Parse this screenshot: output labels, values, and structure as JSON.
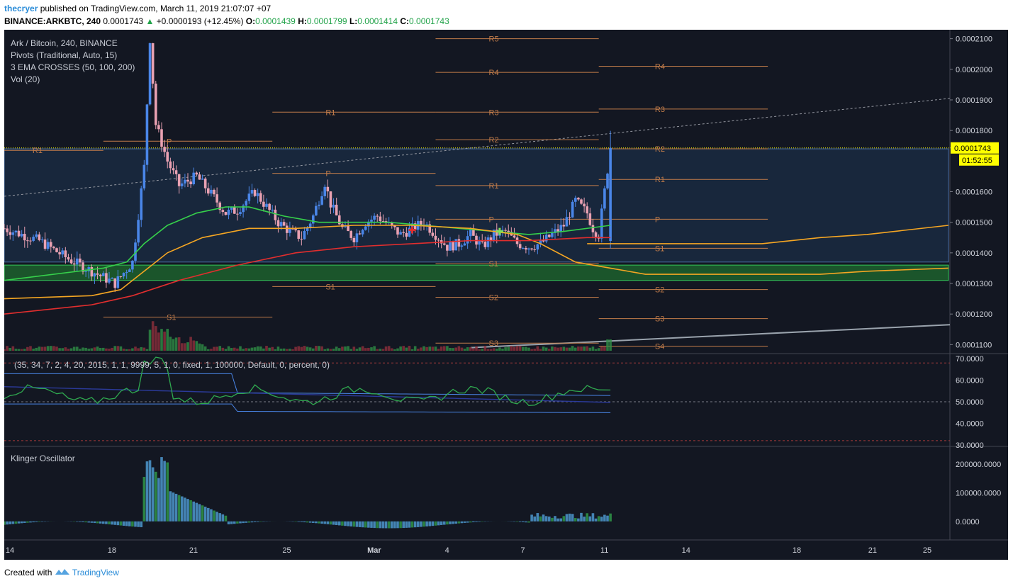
{
  "header": {
    "user": "thecryer",
    "published": "published on TradingView.com, March 11, 2019 21:07:07 +07",
    "symbol": "BINANCE:ARKBTC, 240",
    "last": "0.0001743",
    "change": "+0.0000193 (+12.45%)",
    "o_label": "O:",
    "o_value": "0.0001439",
    "h_label": "H:",
    "h_value": "0.0001799",
    "l_label": "L:",
    "l_value": "0.0001414",
    "c_label": "C:",
    "c_value": "0.0001743"
  },
  "legend": {
    "title": "Ark / Bitcoin, 240, BINANCE",
    "indicator1": "Pivots (Traditional, Auto, 15)",
    "indicator2": "3 EMA CROSSES (50, 100, 200)",
    "indicator3": "Vol (20)",
    "rsi_params": "(35, 34, 7, 2, 4, 20, 2015, 1, 1, 9999, 5, 1, 0, fixed, 1, 100000, Default, 0, percent, 0)",
    "klinger": "Klinger Oscillator"
  },
  "price_badge": {
    "price": "0.0001743",
    "countdown": "01:52:55"
  },
  "footer": {
    "created_with": "Created with",
    "brand": "TradingView"
  },
  "colors": {
    "background": "#131722",
    "up": "#4a86e8",
    "down": "#e9a1b2",
    "ema50": "#36d04b",
    "ema100": "#f5a623",
    "ema200": "#e12e2e",
    "pivot": "#c27c4a",
    "support_zone": "#1f6b2f",
    "price_badge": "#ffff00"
  },
  "chart_data": [
    {
      "type": "candlestick",
      "title": "Ark / Bitcoin, 240, BINANCE",
      "x_ticks": [
        "14",
        "18",
        "21",
        "25",
        "Mar",
        "4",
        "7",
        "11",
        "14",
        "18",
        "21",
        "25"
      ],
      "y_ticks": [
        "0.0002100",
        "0.0002000",
        "0.0001900",
        "0.0001800",
        "0.0001743",
        "0.0001600",
        "0.0001500",
        "0.0001400",
        "0.0001300",
        "0.0001200",
        "0.0001100"
      ],
      "ylim": [
        0.000108,
        0.000212
      ],
      "last_price": 0.0001743,
      "close_path": [
        [
          0,
          0.000148
        ],
        [
          6,
          0.000144
        ],
        [
          11,
          0.000138
        ],
        [
          16,
          0.000133
        ],
        [
          19,
          0.00013
        ],
        [
          22,
          0.000137
        ],
        [
          24,
          0.000168
        ],
        [
          25,
          0.00021
        ],
        [
          26,
          0.000182
        ],
        [
          28,
          0.00017
        ],
        [
          30,
          0.000162
        ],
        [
          33,
          0.000165
        ],
        [
          36,
          0.000158
        ],
        [
          38,
          0.000153
        ],
        [
          40,
          0.000154
        ],
        [
          43,
          0.00016
        ],
        [
          45,
          0.000155
        ],
        [
          47,
          0.00015
        ],
        [
          49,
          0.000147
        ],
        [
          51,
          0.000145
        ],
        [
          53,
          0.000152
        ],
        [
          55,
          0.000163
        ],
        [
          56,
          0.000156
        ],
        [
          58,
          0.000148
        ],
        [
          60,
          0.000145
        ],
        [
          62,
          0.00015
        ],
        [
          64,
          0.000152
        ],
        [
          66,
          0.000149
        ],
        [
          68,
          0.000146
        ],
        [
          70,
          0.000148
        ],
        [
          72,
          0.00015
        ],
        [
          74,
          0.000146
        ],
        [
          76,
          0.000142
        ],
        [
          78,
          0.000143
        ],
        [
          80,
          0.000146
        ],
        [
          82,
          0.000142
        ],
        [
          84,
          0.000146
        ],
        [
          86,
          0.000147
        ],
        [
          88,
          0.000143
        ],
        [
          90,
          0.000142
        ],
        [
          92,
          0.000143
        ],
        [
          94,
          0.000146
        ],
        [
          96,
          0.000149
        ],
        [
          98,
          0.000157
        ],
        [
          100,
          0.000153
        ],
        [
          101,
          0.000148
        ],
        [
          102,
          0.000146
        ],
        [
          104,
          0.0001743
        ]
      ],
      "ema_series": [
        {
          "name": "EMA 50",
          "values": [
            [
              0,
              0.000131
            ],
            [
              17,
              0.000135
            ],
            [
              21,
              0.000137
            ],
            [
              24,
              0.000143
            ],
            [
              28,
              0.000149
            ],
            [
              33,
              0.000153
            ],
            [
              38,
              0.000155
            ],
            [
              42,
              0.000155
            ],
            [
              48,
              0.000152
            ],
            [
              54,
              0.00015
            ],
            [
              60,
              0.00015
            ],
            [
              66,
              0.00015
            ],
            [
              72,
              0.000149
            ],
            [
              78,
              0.000148
            ],
            [
              84,
              0.000147
            ],
            [
              90,
              0.000146
            ],
            [
              96,
              0.000147
            ],
            [
              104,
              0.000149
            ]
          ]
        },
        {
          "name": "EMA 100",
          "values": [
            [
              0,
              0.000125
            ],
            [
              15,
              0.000126
            ],
            [
              20,
              0.000128
            ],
            [
              24,
              0.000134
            ],
            [
              28,
              0.00014
            ],
            [
              34,
              0.000145
            ],
            [
              42,
              0.000148
            ],
            [
              50,
              0.000148
            ],
            [
              60,
              0.000149
            ],
            [
              70,
              0.000149
            ],
            [
              80,
              0.000148
            ],
            [
              88,
              0.000146
            ],
            [
              92,
              0.000143
            ],
            [
              98,
              0.000137
            ],
            [
              104,
              0.000135
            ],
            [
              110,
              0.000133
            ],
            [
              130,
              0.000133
            ],
            [
              140,
              0.000133
            ],
            [
              148,
              0.000134
            ],
            [
              162,
              0.000135
            ]
          ]
        },
        {
          "name": "EMA 200",
          "values": [
            [
              0,
              0.00012
            ],
            [
              15,
              0.000123
            ],
            [
              22,
              0.000126
            ],
            [
              30,
              0.000131
            ],
            [
              40,
              0.000136
            ],
            [
              50,
              0.00014
            ],
            [
              60,
              0.000142
            ],
            [
              70,
              0.000143
            ],
            [
              80,
              0.000144
            ],
            [
              90,
              0.000144
            ],
            [
              100,
              0.000145
            ],
            [
              104,
              0.000145
            ]
          ]
        }
      ],
      "ema_orange_projection": [
        [
          100,
          0.000143
        ],
        [
          130,
          0.000143
        ],
        [
          140,
          0.000145
        ],
        [
          148,
          0.000146
        ],
        [
          162,
          0.000149
        ]
      ],
      "pivot_levels": [
        {
          "label": "P",
          "period": "A",
          "x": [
            17,
            46
          ],
          "y": 0.0001765
        },
        {
          "label": "R1",
          "period": "A",
          "x": [
            0,
            17
          ],
          "y": 0.0001735
        },
        {
          "label": "S1",
          "period": "A",
          "x": [
            17,
            46
          ],
          "y": 0.000119
        },
        {
          "label": "R1",
          "period": "B",
          "x": [
            46,
            74
          ],
          "y": 0.000186
        },
        {
          "label": "P",
          "period": "B",
          "x": [
            46,
            74
          ],
          "y": 0.000166
        },
        {
          "label": "S1",
          "period": "B",
          "x": [
            46,
            74
          ],
          "y": 0.000129
        },
        {
          "label": "R5",
          "period": "C",
          "x": [
            74,
            102
          ],
          "y": 0.00021
        },
        {
          "label": "R4",
          "period": "C",
          "x": [
            74,
            102
          ],
          "y": 0.000199
        },
        {
          "label": "R3",
          "period": "C",
          "x": [
            74,
            102
          ],
          "y": 0.000186
        },
        {
          "label": "R2",
          "period": "C",
          "x": [
            74,
            102
          ],
          "y": 0.000177
        },
        {
          "label": "R1",
          "period": "C",
          "x": [
            74,
            102
          ],
          "y": 0.000162
        },
        {
          "label": "P",
          "period": "C",
          "x": [
            74,
            102
          ],
          "y": 0.000151
        },
        {
          "label": "S1",
          "period": "C",
          "x": [
            74,
            102
          ],
          "y": 0.0001365
        },
        {
          "label": "S2",
          "period": "C",
          "x": [
            74,
            102
          ],
          "y": 0.0001255
        },
        {
          "label": "S3",
          "period": "C",
          "x": [
            74,
            102
          ],
          "y": 0.0001105
        },
        {
          "label": "R4",
          "period": "D",
          "x": [
            102,
            131
          ],
          "y": 0.000201
        },
        {
          "label": "R3",
          "period": "D",
          "x": [
            102,
            131
          ],
          "y": 0.000187
        },
        {
          "label": "R2",
          "period": "D",
          "x": [
            102,
            131
          ],
          "y": 0.000174
        },
        {
          "label": "R1",
          "period": "D",
          "x": [
            102,
            131
          ],
          "y": 0.000164
        },
        {
          "label": "P",
          "period": "D",
          "x": [
            102,
            131
          ],
          "y": 0.000151
        },
        {
          "label": "S1",
          "period": "D",
          "x": [
            102,
            131
          ],
          "y": 0.0001415
        },
        {
          "label": "S2",
          "period": "D",
          "x": [
            102,
            131
          ],
          "y": 0.000128
        },
        {
          "label": "S3",
          "period": "D",
          "x": [
            102,
            131
          ],
          "y": 0.0001185
        },
        {
          "label": "S4",
          "period": "D",
          "x": [
            102,
            131
          ],
          "y": 0.0001095
        }
      ],
      "zones": [
        {
          "name": "resistance-band",
          "y": [
            0.000137,
            0.000174
          ]
        },
        {
          "name": "support-band",
          "y": [
            0.000131,
            0.000136
          ]
        }
      ]
    },
    {
      "type": "line",
      "y_ticks": [
        "70.0000",
        "60.0000",
        "50.0000",
        "40.0000",
        "30.0000"
      ],
      "ylim": [
        30,
        72
      ],
      "ref_lines": [
        68,
        50,
        32
      ]
    },
    {
      "type": "histogram",
      "title": "Klinger Oscillator",
      "y_ticks": [
        "200000.0000",
        "100000.0000",
        "0.0000"
      ],
      "ylim": [
        -60000,
        260000
      ]
    }
  ]
}
